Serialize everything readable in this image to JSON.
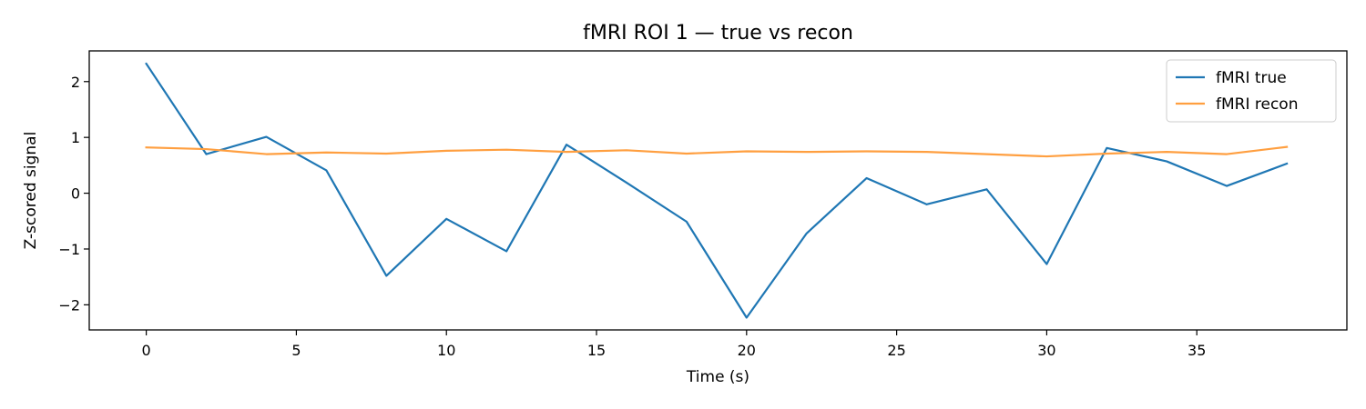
{
  "chart_data": {
    "type": "line",
    "title": "fMRI ROI 1 — true vs recon",
    "xlabel": "Time (s)",
    "ylabel": "Z-scored signal",
    "xlim": [
      -1.9,
      40
    ],
    "ylim": [
      -2.45,
      2.55
    ],
    "xticks": [
      0,
      5,
      10,
      15,
      20,
      25,
      30,
      35
    ],
    "yticks": [
      -2,
      -1,
      0,
      1,
      2
    ],
    "xtick_labels": [
      "0",
      "5",
      "10",
      "15",
      "20",
      "25",
      "30",
      "35"
    ],
    "ytick_labels": [
      "−2",
      "−1",
      "0",
      "1",
      "2"
    ],
    "grid": false,
    "legend_position": "top-right",
    "x": [
      0,
      2,
      4,
      6,
      8,
      10,
      12,
      14,
      16,
      18,
      20,
      22,
      24,
      26,
      28,
      30,
      32,
      34,
      36,
      38
    ],
    "series": [
      {
        "name": "fMRI true",
        "color": "#1f77b4",
        "values": [
          2.32,
          0.7,
          1.01,
          0.41,
          -1.48,
          -0.46,
          -1.04,
          0.87,
          0.19,
          -0.51,
          -2.23,
          -0.72,
          0.27,
          -0.2,
          0.07,
          -1.27,
          0.81,
          0.57,
          0.13,
          0.53
        ]
      },
      {
        "name": "fMRI recon",
        "color": "#ff9f40",
        "values": [
          0.82,
          0.79,
          0.7,
          0.73,
          0.71,
          0.76,
          0.78,
          0.74,
          0.77,
          0.71,
          0.75,
          0.74,
          0.75,
          0.74,
          0.7,
          0.66,
          0.71,
          0.74,
          0.7,
          0.83
        ]
      }
    ]
  }
}
